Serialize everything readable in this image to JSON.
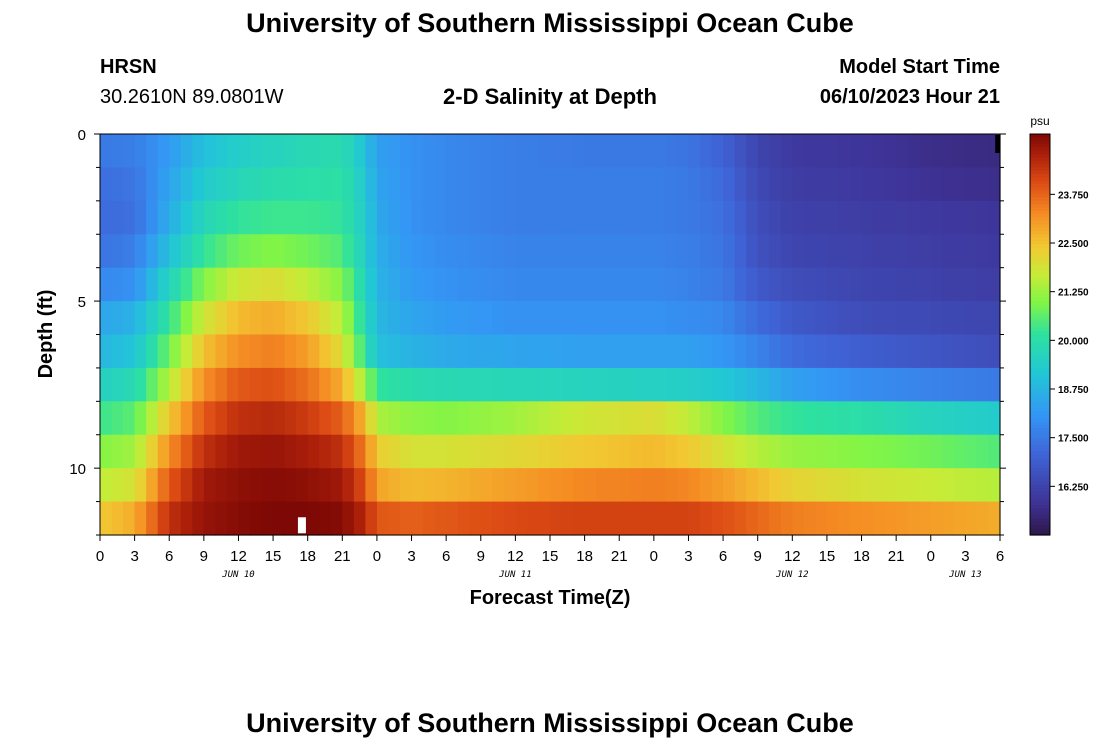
{
  "header": {
    "title": "University of Southern Mississippi Ocean Cube",
    "station": "HRSN",
    "coords": "30.2610N  89.0801W",
    "subtitle": "2-D Salinity at Depth",
    "start_label": "Model Start Time",
    "start_value": "06/10/2023 Hour 21"
  },
  "footer": {
    "title": "University of Southern Mississippi Ocean Cube"
  },
  "chart_data": {
    "type": "heatmap",
    "title": "2-D Salinity at Depth",
    "xlabel": "Forecast Time(Z)",
    "ylabel": "Depth (ft)",
    "x_hours_start": 0,
    "x_hours_end": 78,
    "x_tick_labels": [
      "0",
      "3",
      "6",
      "9",
      "12",
      "15",
      "18",
      "21",
      "0",
      "3",
      "6",
      "9",
      "12",
      "15",
      "18",
      "21",
      "0",
      "3",
      "6",
      "9",
      "12",
      "15",
      "18",
      "21",
      "0",
      "3",
      "6"
    ],
    "date_labels": [
      {
        "label": "JUN 10",
        "hour": 12
      },
      {
        "label": "JUN 11",
        "hour": 36
      },
      {
        "label": "JUN 12",
        "hour": 60
      },
      {
        "label": "JUN 13",
        "hour": 75
      }
    ],
    "y_range": [
      0,
      12
    ],
    "y_tick_labels": [
      "0",
      "5",
      "10"
    ],
    "y_tick_values": [
      0,
      5,
      10
    ],
    "depth_levels": [
      0.5,
      1.5,
      2.5,
      3.5,
      4.5,
      5.5,
      6.5,
      7.5,
      8.5,
      9.5,
      10.5,
      11.5
    ],
    "time_points_hours": [
      0,
      3,
      6,
      9,
      12,
      15,
      18,
      21,
      23,
      24,
      27,
      30,
      36,
      42,
      48,
      51,
      54,
      57,
      60,
      66,
      72,
      78
    ],
    "salinity_psu": [
      [
        17.5,
        17.6,
        18.2,
        19.0,
        19.4,
        19.6,
        19.8,
        19.9,
        19.0,
        18.3,
        18.0,
        17.8,
        17.6,
        17.5,
        17.5,
        17.4,
        17.0,
        16.3,
        16.0,
        15.9,
        15.7,
        15.6
      ],
      [
        17.3,
        17.4,
        18.4,
        19.3,
        19.7,
        19.9,
        20.0,
        20.1,
        19.2,
        18.4,
        18.0,
        17.8,
        17.6,
        17.6,
        17.6,
        17.5,
        17.2,
        16.4,
        16.1,
        16.0,
        15.8,
        15.7
      ],
      [
        17.2,
        17.3,
        18.6,
        19.7,
        20.2,
        20.3,
        20.3,
        20.2,
        19.3,
        18.5,
        18.0,
        17.8,
        17.6,
        17.6,
        17.6,
        17.5,
        17.3,
        16.5,
        16.2,
        16.1,
        16.0,
        15.9
      ],
      [
        17.4,
        17.6,
        19.0,
        20.2,
        20.8,
        21.0,
        20.8,
        20.5,
        19.4,
        18.6,
        18.1,
        17.9,
        17.7,
        17.7,
        17.7,
        17.6,
        17.4,
        16.6,
        16.3,
        16.2,
        16.1,
        16.0
      ],
      [
        17.8,
        18.0,
        19.6,
        21.0,
        21.8,
        22.0,
        21.6,
        21.0,
        19.6,
        18.7,
        18.2,
        18.0,
        17.8,
        17.8,
        17.8,
        17.7,
        17.5,
        16.8,
        16.5,
        16.3,
        16.2,
        16.1
      ],
      [
        18.4,
        18.7,
        20.2,
        21.8,
        22.6,
        22.8,
        22.4,
        21.5,
        19.8,
        18.8,
        18.4,
        18.2,
        18.0,
        18.0,
        18.0,
        17.9,
        17.8,
        17.2,
        16.8,
        16.5,
        16.4,
        16.3
      ],
      [
        18.8,
        19.1,
        20.8,
        22.5,
        23.2,
        23.4,
        23.0,
        22.0,
        20.1,
        19.0,
        18.7,
        18.5,
        18.4,
        18.3,
        18.3,
        18.3,
        18.1,
        17.7,
        17.2,
        16.9,
        16.7,
        16.5
      ],
      [
        19.5,
        19.8,
        21.5,
        23.2,
        23.9,
        24.0,
        23.6,
        22.8,
        21.2,
        20.2,
        19.9,
        19.8,
        19.7,
        19.6,
        19.5,
        19.4,
        19.2,
        18.8,
        18.3,
        17.9,
        17.7,
        17.5
      ],
      [
        20.3,
        20.6,
        22.4,
        23.9,
        24.5,
        24.6,
        24.3,
        23.8,
        22.6,
        21.4,
        21.1,
        21.0,
        21.3,
        21.8,
        22.0,
        21.6,
        21.0,
        20.5,
        20.2,
        20.0,
        19.6,
        19.3
      ],
      [
        21.0,
        21.3,
        23.2,
        24.5,
        24.9,
        25.0,
        24.8,
        24.5,
        23.4,
        22.3,
        21.9,
        21.9,
        22.1,
        22.4,
        22.6,
        22.4,
        21.9,
        21.5,
        21.2,
        21.0,
        20.8,
        20.5
      ],
      [
        21.6,
        21.9,
        23.9,
        24.9,
        25.1,
        25.2,
        25.1,
        24.9,
        24.0,
        22.9,
        22.6,
        22.7,
        23.0,
        23.3,
        23.4,
        23.3,
        23.0,
        22.6,
        22.2,
        21.9,
        21.7,
        21.5
      ],
      [
        22.4,
        22.8,
        24.5,
        25.0,
        25.2,
        25.3,
        25.3,
        25.2,
        24.6,
        23.9,
        23.8,
        23.9,
        24.1,
        24.2,
        24.2,
        24.2,
        24.0,
        23.7,
        23.4,
        23.2,
        23.0,
        22.8
      ]
    ],
    "colorbar": {
      "unit": "psu",
      "tick_values": [
        16.25,
        17.5,
        18.75,
        20.0,
        21.25,
        22.5,
        23.75
      ],
      "tick_labels": [
        "16.250",
        "17.500",
        "18.750",
        "20.000",
        "21.250",
        "22.500",
        "23.750"
      ],
      "range": [
        15.0,
        25.3
      ]
    },
    "markers": [
      {
        "kind": "current-time",
        "hour": 17.5,
        "depth": 11.5,
        "color": "#ffffff"
      },
      {
        "kind": "end",
        "hour": 77.8,
        "depth": 0.25,
        "color": "#000000"
      }
    ]
  }
}
